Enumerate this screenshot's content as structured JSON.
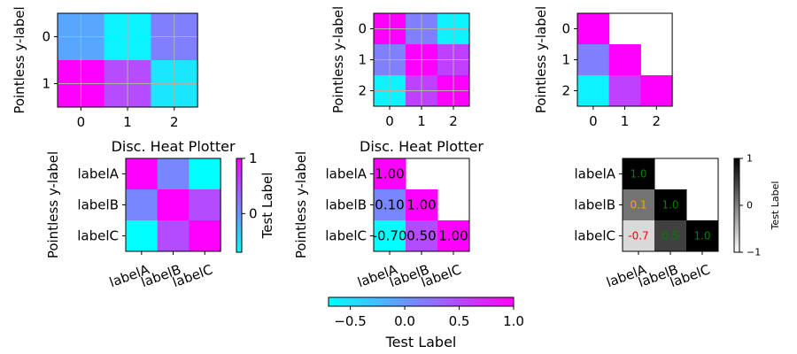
{
  "colormaps": {
    "cool": {
      "from": "#00ffff",
      "to": "#ff00ff"
    },
    "gray": {
      "from": "#ffffff",
      "to": "#000000"
    }
  },
  "chart_data": [
    {
      "type": "heatmap",
      "panel": "top-left",
      "ylabel": "Pointless y-label",
      "xticks": [
        "0",
        "1",
        "2"
      ],
      "yticks": [
        "0",
        "1"
      ],
      "grid": true,
      "vmin": 0,
      "vmax": 1,
      "values": [
        [
          0.35,
          0.05,
          0.5
        ],
        [
          1.0,
          0.7,
          0.1
        ]
      ]
    },
    {
      "type": "heatmap",
      "panel": "top-middle",
      "ylabel": "Pointless y-label",
      "xticks": [
        "0",
        "1",
        "2"
      ],
      "yticks": [
        "0",
        "1",
        "2"
      ],
      "grid": true,
      "vmin": 0,
      "vmax": 1,
      "values": [
        [
          1.0,
          0.5,
          0.05
        ],
        [
          0.5,
          1.0,
          0.75
        ],
        [
          0.05,
          0.75,
          1.0
        ]
      ]
    },
    {
      "type": "heatmap",
      "panel": "top-right",
      "ylabel": "Pointless y-label",
      "xticks": [
        "0",
        "1",
        "2"
      ],
      "yticks": [
        "0",
        "1",
        "2"
      ],
      "grid": false,
      "vmin": 0,
      "vmax": 1,
      "values": [
        [
          1.0,
          null,
          null
        ],
        [
          0.5,
          1.0,
          null
        ],
        [
          0.05,
          0.75,
          1.0
        ]
      ]
    },
    {
      "type": "heatmap",
      "panel": "bottom-left",
      "title": "Disc. Heat Plotter",
      "ylabel": "Pointless y-label",
      "xticks": [
        "labelA",
        "labelB",
        "labelC"
      ],
      "yticks": [
        "labelA",
        "labelB",
        "labelC"
      ],
      "grid": false,
      "vmin": -0.7,
      "vmax": 1,
      "values": [
        [
          1.0,
          0.1,
          -0.7
        ],
        [
          0.1,
          1.0,
          0.5
        ],
        [
          -0.7,
          0.5,
          1.0
        ]
      ],
      "colorbar": {
        "label": "Test Label",
        "ticks": [
          {
            "value": 0,
            "label": "0"
          },
          {
            "value": 1,
            "label": "1"
          }
        ]
      }
    },
    {
      "type": "heatmap",
      "panel": "bottom-middle",
      "title": "Disc. Heat Plotter",
      "ylabel": "Pointless y-label",
      "xticks": [
        "labelA",
        "labelB",
        "labelC"
      ],
      "yticks": [
        "labelA",
        "labelB",
        "labelC"
      ],
      "grid": false,
      "vmin": -0.7,
      "vmax": 1,
      "values": [
        [
          1.0,
          null,
          null
        ],
        [
          0.1,
          1.0,
          null
        ],
        [
          -0.7,
          0.5,
          1.0
        ]
      ],
      "annotations": [
        [
          "1.00",
          "",
          ""
        ],
        [
          "0.10",
          "1.00",
          ""
        ],
        [
          "-0.70",
          "0.50",
          "1.00"
        ]
      ],
      "colorbar": {
        "label": "Test Label",
        "ticks": [
          {
            "value": -0.5,
            "label": "−0.5"
          },
          {
            "value": 0.0,
            "label": "0.0"
          },
          {
            "value": 0.5,
            "label": "0.5"
          },
          {
            "value": 1.0,
            "label": "1.0"
          }
        ]
      }
    },
    {
      "type": "heatmap",
      "panel": "bottom-right",
      "xticks": [
        "labelA",
        "labelB",
        "labelC"
      ],
      "yticks": [
        "labelA",
        "labelB",
        "labelC"
      ],
      "grid": false,
      "vmin": -1,
      "vmax": 1,
      "values": [
        [
          1.0,
          null,
          null
        ],
        [
          0.1,
          1.0,
          null
        ],
        [
          -0.7,
          0.5,
          1.0
        ]
      ],
      "annotations": [
        [
          "1.0",
          "",
          ""
        ],
        [
          "0.1",
          "1.0",
          ""
        ],
        [
          "-0.7",
          "0.5",
          "1.0"
        ]
      ],
      "annotation_colors": [
        [
          "#008000",
          "",
          ""
        ],
        [
          "#ffa500",
          "#008000",
          ""
        ],
        [
          "#ff0000",
          "#008000",
          "#008000"
        ]
      ],
      "colorbar": {
        "label": "Test Label",
        "ticks": [
          {
            "value": -1,
            "label": "−1"
          },
          {
            "value": 0,
            "label": "0"
          },
          {
            "value": 1,
            "label": "1"
          }
        ]
      }
    }
  ]
}
